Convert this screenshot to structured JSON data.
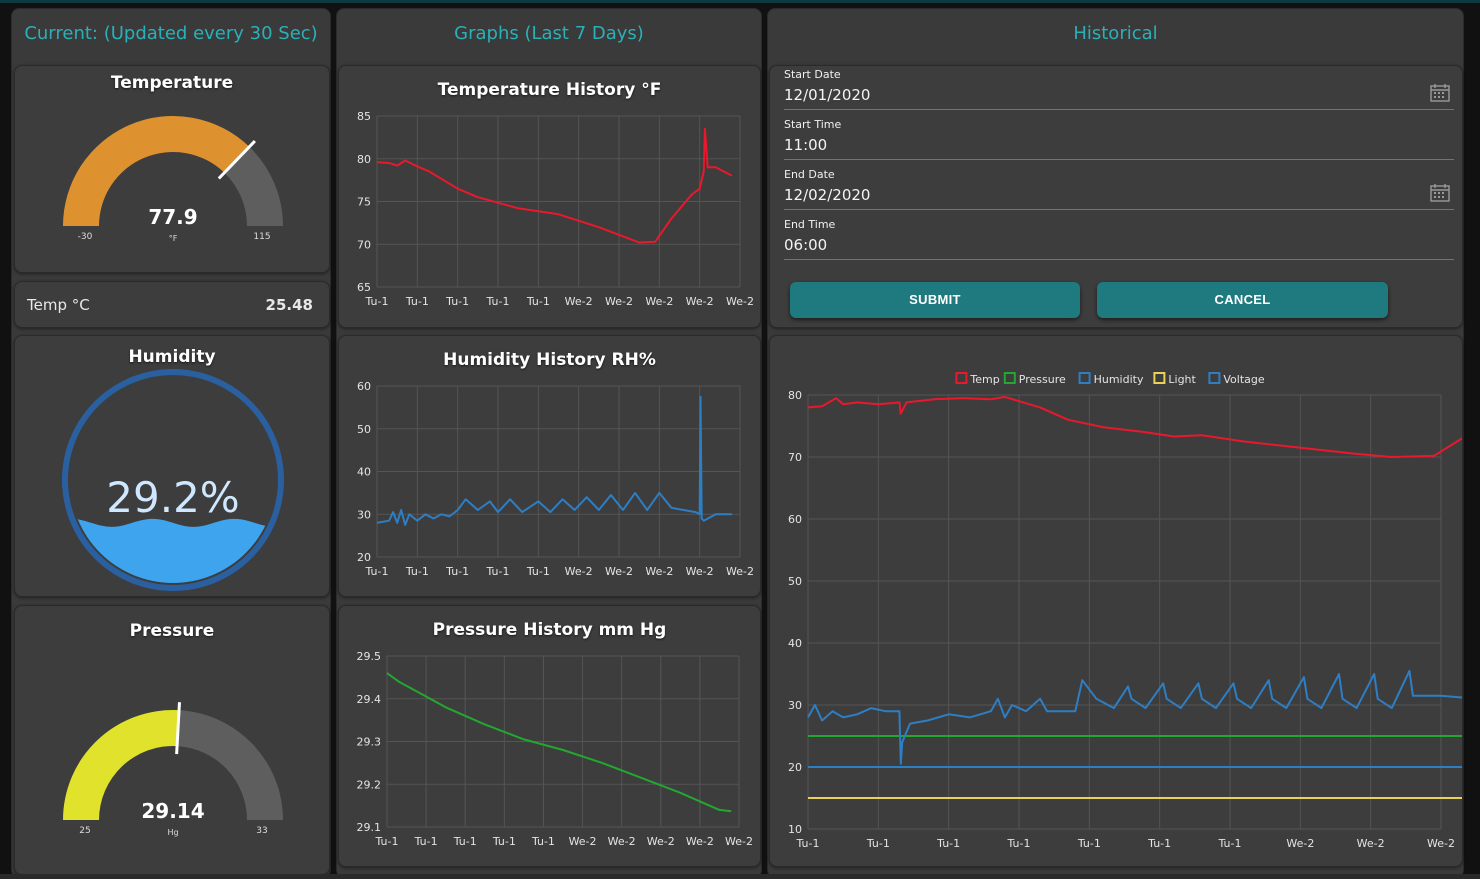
{
  "groups": {
    "current": "Current: (Updated every 30 Sec)",
    "graphs": "Graphs (Last 7 Days)",
    "historical": "Historical"
  },
  "temperature_gauge": {
    "title": "Temperature",
    "value": "77.9",
    "unit": "°F",
    "min": "-30",
    "max": "115",
    "value_num": 77.9,
    "min_num": -30,
    "max_num": 115,
    "color": "#de922f"
  },
  "temp_c": {
    "label": "Temp °C",
    "value": "25.48"
  },
  "humidity_gauge": {
    "title": "Humidity",
    "value": "29.2%",
    "level": 0.292,
    "color": "#3fa4ee"
  },
  "pressure_gauge": {
    "title": "Pressure",
    "value": "29.14",
    "unit": "Hg",
    "min": "25",
    "max": "33",
    "value_num": 29.14,
    "min_num": 25,
    "max_num": 33,
    "color": "#e0e22b"
  },
  "form": {
    "start_date_label": "Start Date",
    "start_date": "12/01/2020",
    "start_time_label": "Start Time",
    "start_time": "11:00",
    "end_date_label": "End Date",
    "end_date": "12/02/2020",
    "end_time_label": "End Time",
    "end_time": "06:00",
    "submit": "SUBMIT",
    "cancel": "CANCEL"
  },
  "chart_data": [
    {
      "type": "line",
      "title": "Temperature History °F",
      "categories": [
        "Tu-1",
        "Tu-1",
        "Tu-1",
        "Tu-1",
        "Tu-1",
        "We-2",
        "We-2",
        "We-2",
        "We-2",
        "We-2"
      ],
      "yticks": [
        "85",
        "80",
        "75",
        "70",
        "65"
      ],
      "ylim": [
        65,
        85
      ],
      "series": [
        {
          "color": "#e8192c",
          "x": [
            0,
            0.3,
            0.5,
            0.7,
            1.0,
            1.3,
            2.0,
            2.5,
            3.5,
            4.5,
            5.5,
            6.5,
            6.9,
            7.3,
            7.8,
            8.0,
            8.1,
            8.13,
            8.2,
            8.4,
            8.8
          ],
          "y": [
            79.6,
            79.5,
            79.2,
            79.8,
            79.1,
            78.5,
            76.5,
            75.5,
            74.2,
            73.5,
            72,
            70.2,
            70.3,
            73,
            75.8,
            76.5,
            78.5,
            83.5,
            79,
            79,
            78
          ]
        }
      ]
    },
    {
      "type": "line",
      "title": "Humidity History RH%",
      "categories": [
        "Tu-1",
        "Tu-1",
        "Tu-1",
        "Tu-1",
        "Tu-1",
        "We-2",
        "We-2",
        "We-2",
        "We-2",
        "We-2"
      ],
      "yticks": [
        "60",
        "50",
        "40",
        "30",
        "20"
      ],
      "ylim": [
        20,
        60
      ],
      "series": [
        {
          "color": "#2e7ec4",
          "x": [
            0,
            0.3,
            0.4,
            0.5,
            0.6,
            0.7,
            0.8,
            1.0,
            1.2,
            1.4,
            1.6,
            1.8,
            2.0,
            2.2,
            2.5,
            2.8,
            3.0,
            3.3,
            3.6,
            4.0,
            4.3,
            4.6,
            4.9,
            5.2,
            5.5,
            5.8,
            6.1,
            6.4,
            6.7,
            7.0,
            7.3,
            7.6,
            7.9,
            8.0,
            8.02,
            8.05,
            8.1,
            8.4,
            8.8
          ],
          "y": [
            28,
            28.5,
            30.5,
            28,
            31,
            27.5,
            30,
            28.5,
            30,
            29,
            30,
            29.5,
            31,
            33.5,
            31,
            33,
            30.5,
            33.5,
            30.5,
            33,
            30.5,
            33.5,
            31,
            34,
            31,
            34.5,
            31,
            35,
            31,
            35,
            31.5,
            31,
            30.5,
            30,
            57.5,
            29,
            28.5,
            30,
            30
          ]
        }
      ]
    },
    {
      "type": "line",
      "title": "Pressure History mm Hg",
      "categories": [
        "Tu-1",
        "Tu-1",
        "Tu-1",
        "Tu-1",
        "Tu-1",
        "We-2",
        "We-2",
        "We-2",
        "We-2",
        "We-2"
      ],
      "yticks": [
        "29.5",
        "29.4",
        "29.3",
        "29.2",
        "29.1"
      ],
      "ylim": [
        29.1,
        29.5
      ],
      "series": [
        {
          "color": "#22a830",
          "x": [
            0,
            0.3,
            0.8,
            1.5,
            2.5,
            3.5,
            4.5,
            5.5,
            6.5,
            7.5,
            8.0,
            8.5,
            8.8
          ],
          "y": [
            29.46,
            29.44,
            29.415,
            29.38,
            29.34,
            29.305,
            29.28,
            29.25,
            29.215,
            29.18,
            29.16,
            29.14,
            29.137
          ]
        }
      ]
    },
    {
      "type": "line",
      "legend": [
        "Temp",
        "Pressure",
        "Humidity",
        "Light",
        "Voltage"
      ],
      "legend_colors": [
        "#e8192c",
        "#22a830",
        "#2e7ec4",
        "#e8d25a",
        "#2e7ec4"
      ],
      "legend_position": "top",
      "categories": [
        "Tu-1",
        "Tu-1",
        "Tu-1",
        "Tu-1",
        "Tu-1",
        "Tu-1",
        "Tu-1",
        "We-2",
        "We-2",
        "We-2"
      ],
      "yticks": [
        "80",
        "70",
        "60",
        "50",
        "40",
        "30",
        "20",
        "10"
      ],
      "ylim": [
        10,
        80
      ],
      "series": [
        {
          "name": "Temp",
          "color": "#e8192c",
          "x": [
            0,
            0.2,
            0.4,
            0.5,
            0.7,
            1.0,
            1.3,
            1.32,
            1.4,
            1.8,
            2.2,
            2.6,
            2.8,
            3.0,
            3.3,
            3.7,
            4.2,
            4.8,
            5.2,
            5.6,
            6.2,
            7.0,
            7.8,
            8.3,
            8.9,
            9.3,
            9.5
          ],
          "y": [
            78,
            78.2,
            79.5,
            78.5,
            78.8,
            78.5,
            78.8,
            77,
            78.8,
            79.3,
            79.5,
            79.3,
            79.7,
            79,
            78,
            76,
            74.8,
            74,
            73.3,
            73.5,
            72.5,
            71.5,
            70.5,
            70,
            70.2,
            73,
            74.3
          ]
        },
        {
          "name": "Pressure",
          "color": "#22a830",
          "x": [
            0,
            9.5
          ],
          "y": [
            25,
            25
          ]
        },
        {
          "name": "Humidity",
          "color": "#2e7ec4",
          "x": [
            0,
            0.1,
            0.2,
            0.35,
            0.5,
            0.7,
            0.9,
            1.1,
            1.3,
            1.32,
            1.34,
            1.45,
            1.7,
            2.0,
            2.3,
            2.6,
            2.7,
            2.8,
            2.9,
            3.1,
            3.3,
            3.4,
            3.6,
            3.8,
            3.9,
            4.1,
            4.35,
            4.55,
            4.6,
            4.8,
            5.05,
            5.1,
            5.3,
            5.55,
            5.6,
            5.8,
            6.05,
            6.1,
            6.3,
            6.55,
            6.6,
            6.8,
            7.05,
            7.1,
            7.3,
            7.55,
            7.6,
            7.8,
            8.05,
            8.1,
            8.3,
            8.55,
            8.6,
            8.8,
            9.0,
            9.5
          ],
          "y": [
            28,
            30,
            27.5,
            29,
            28,
            28.5,
            29.5,
            29,
            29,
            20.5,
            24,
            27,
            27.5,
            28.5,
            28,
            29,
            31,
            28,
            30,
            29,
            31,
            29,
            29,
            29,
            34,
            31,
            29.5,
            33,
            31,
            29.5,
            33.5,
            31,
            29.5,
            33.5,
            31,
            29.5,
            33.5,
            31,
            29.5,
            34,
            31,
            29.5,
            34.5,
            31,
            29.5,
            35,
            31,
            29.5,
            35,
            31,
            29.5,
            35.5,
            31.5,
            31.5,
            31.5,
            31
          ]
        },
        {
          "name": "Voltage",
          "color": "#2e7ec4",
          "x": [
            0,
            9.5
          ],
          "y": [
            20,
            20
          ]
        },
        {
          "name": "Light",
          "color": "#e8d25a",
          "x": [
            0,
            9.5
          ],
          "y": [
            15,
            15
          ]
        }
      ]
    }
  ]
}
